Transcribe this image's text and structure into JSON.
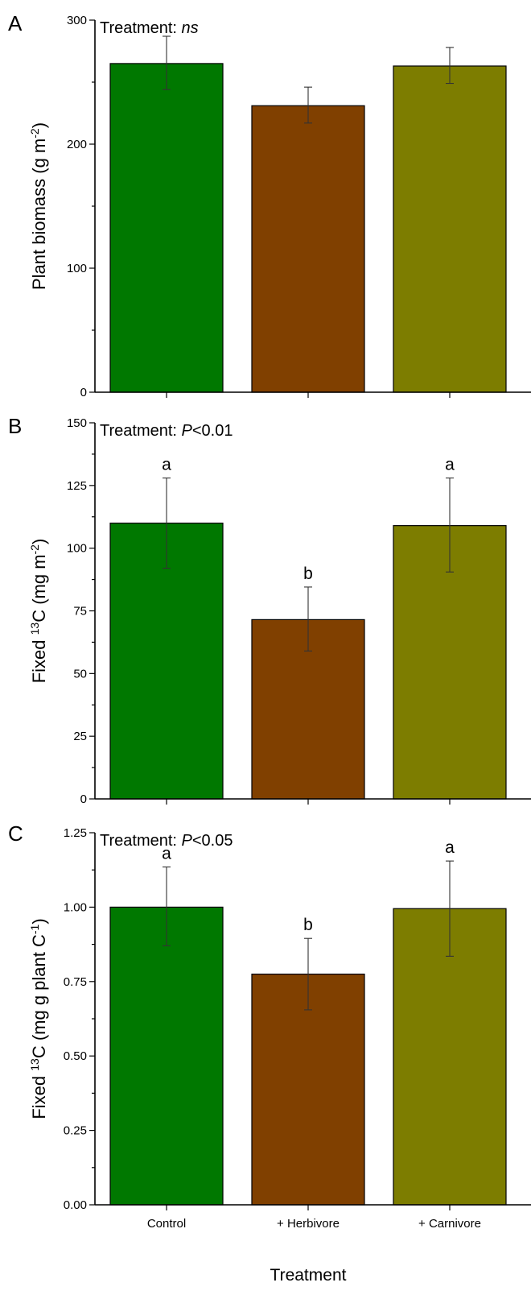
{
  "colors": {
    "control": "#007800",
    "herbivore": "#804000",
    "carnivore": "#7d7d00"
  },
  "chart_data": [
    {
      "panel": "A",
      "type": "bar",
      "annotation_prefix": "Treatment: ",
      "annotation_value": "ns",
      "ylabel": "Plant biomass (g m",
      "ylabel_sup": "-2",
      "ylabel_suffix": ")",
      "xlabel": "",
      "categories": [
        "Control",
        "+ Herbivore",
        "+ Carnivore"
      ],
      "values": [
        265,
        231,
        263
      ],
      "errors": [
        [
          244,
          287
        ],
        [
          217,
          246
        ],
        [
          249,
          278
        ]
      ],
      "sig_letters": [
        "",
        "",
        ""
      ],
      "ylim": [
        0,
        300
      ],
      "yticks": [
        0,
        100,
        200,
        300
      ],
      "ytick_labels": [
        "0",
        "100",
        "200",
        "300"
      ],
      "show_xtick_labels": false
    },
    {
      "panel": "B",
      "type": "bar",
      "annotation_prefix": "Treatment: ",
      "annotation_value": "P",
      "annotation_suffix": "<0.01",
      "ylabel": "Fixed ",
      "ylabel_sup": "13",
      "ylabel_suffix": "C (mg m",
      "ylabel_sup2": "-2",
      "ylabel_suffix2": ")",
      "xlabel": "",
      "categories": [
        "Control",
        "+ Herbivore",
        "+ Carnivore"
      ],
      "values": [
        110,
        71.5,
        109
      ],
      "errors": [
        [
          92,
          128
        ],
        [
          59,
          84.5
        ],
        [
          90.5,
          128
        ]
      ],
      "sig_letters": [
        "a",
        "b",
        "a"
      ],
      "ylim": [
        0,
        150
      ],
      "yticks": [
        0,
        25,
        50,
        75,
        100,
        125,
        150
      ],
      "ytick_labels": [
        "0",
        "25",
        "50",
        "75",
        "100",
        "125",
        "150"
      ],
      "show_xtick_labels": false
    },
    {
      "panel": "C",
      "type": "bar",
      "annotation_prefix": "Treatment: ",
      "annotation_value": "P",
      "annotation_suffix": "<0.05",
      "ylabel": "Fixed ",
      "ylabel_sup": "13",
      "ylabel_suffix": "C (mg g plant C",
      "ylabel_sup2": "-1",
      "ylabel_suffix2": ")",
      "xlabel": "Treatment",
      "categories": [
        "Control",
        "+ Herbivore",
        "+ Carnivore"
      ],
      "values": [
        1.0,
        0.775,
        0.995
      ],
      "errors": [
        [
          0.87,
          1.135
        ],
        [
          0.655,
          0.895
        ],
        [
          0.835,
          1.155
        ]
      ],
      "sig_letters": [
        "a",
        "b",
        "a"
      ],
      "ylim": [
        0,
        1.25
      ],
      "yticks": [
        0,
        0.25,
        0.5,
        0.75,
        1.0,
        1.25
      ],
      "ytick_labels": [
        "0.00",
        "0.25",
        "0.50",
        "0.75",
        "1.00",
        "1.25"
      ],
      "show_xtick_labels": true
    }
  ]
}
